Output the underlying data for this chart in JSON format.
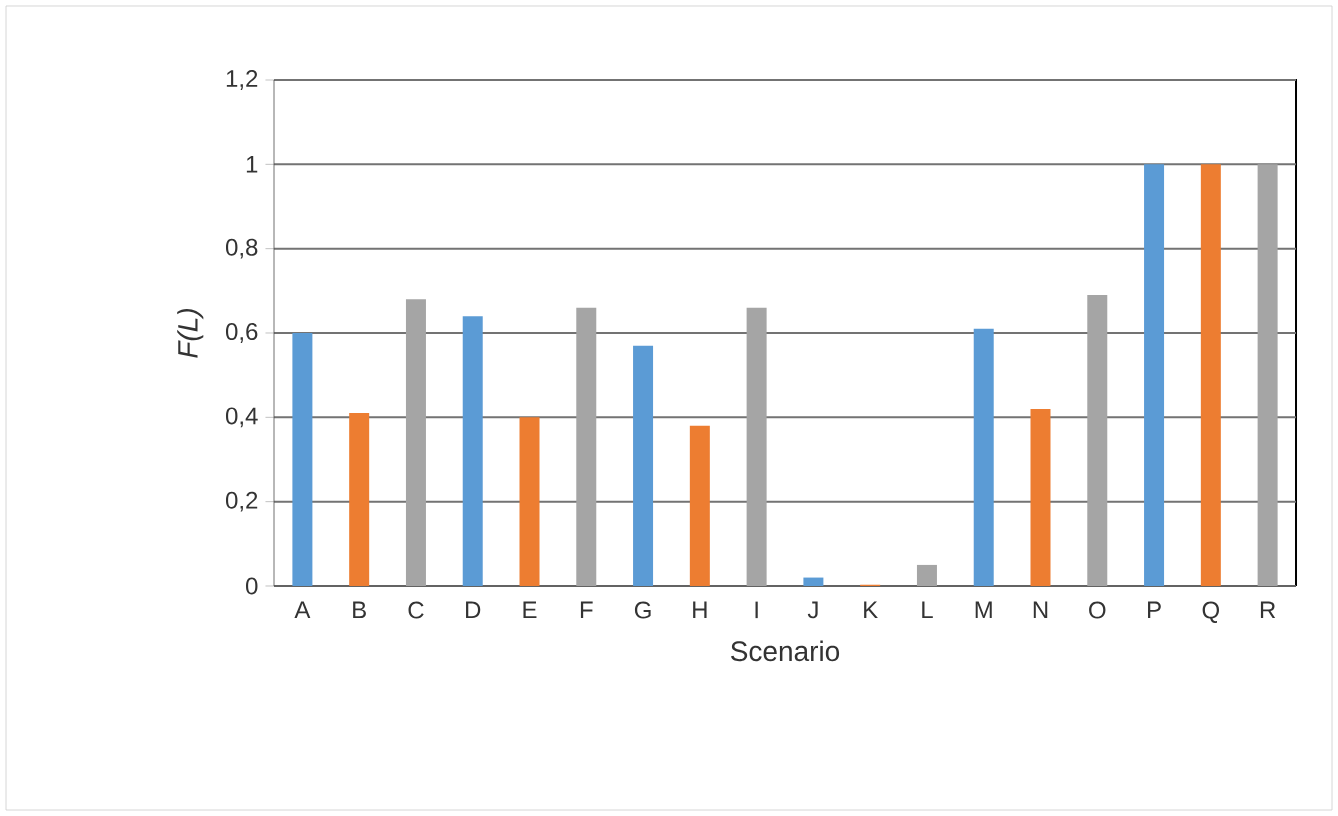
{
  "chart_data": {
    "type": "bar",
    "xlabel": "Scenario",
    "ylabel": "F(L)",
    "categories": [
      "A",
      "B",
      "C",
      "D",
      "E",
      "F",
      "G",
      "H",
      "I",
      "J",
      "K",
      "L",
      "M",
      "N",
      "O",
      "P",
      "Q",
      "R"
    ],
    "values": [
      0.6,
      0.41,
      0.68,
      0.64,
      0.4,
      0.66,
      0.57,
      0.38,
      0.66,
      0.02,
      0.003,
      0.05,
      0.61,
      0.42,
      0.69,
      1,
      1,
      1
    ],
    "colors": [
      "#5b9bd5",
      "#ed7d31",
      "#a5a5a5",
      "#5b9bd5",
      "#ed7d31",
      "#a5a5a5",
      "#5b9bd5",
      "#ed7d31",
      "#a5a5a5",
      "#5b9bd5",
      "#ed7d31",
      "#a5a5a5",
      "#5b9bd5",
      "#ed7d31",
      "#a5a5a5",
      "#5b9bd5",
      "#ed7d31",
      "#a5a5a5"
    ],
    "ylim": [
      0,
      1.2
    ],
    "yticks": [
      0,
      {
        "value": 0.2,
        "label": "0,2"
      },
      {
        "value": 0.4,
        "label": "0,4"
      },
      {
        "value": 0.6,
        "label": "0,6"
      },
      {
        "value": 0.8,
        "label": "0,8"
      },
      1,
      {
        "value": 1.2,
        "label": "1,2"
      }
    ],
    "grid": "y"
  }
}
